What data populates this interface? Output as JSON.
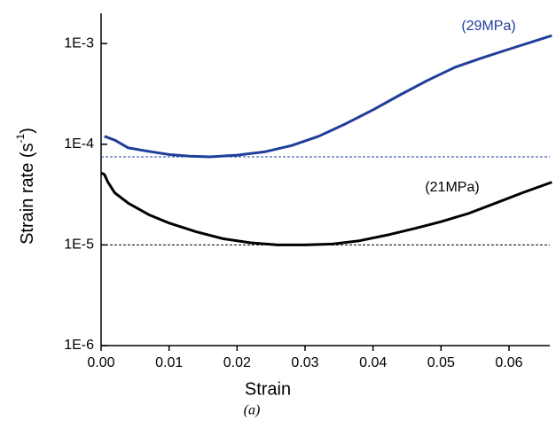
{
  "chart_data": {
    "type": "line",
    "xlabel": "Strain",
    "ylabel": {
      "text": "Strain rate (s",
      "superscript": "-1",
      "close": ")"
    },
    "caption": "(a)",
    "log_y": true,
    "xlim": [
      0,
      0.066
    ],
    "ylim": [
      1e-06,
      0.002
    ],
    "xticks": [
      {
        "value": 0,
        "label": "0.00"
      },
      0.01,
      0.02,
      0.03,
      0.04,
      0.05,
      0.06
    ],
    "yticks": [
      {
        "value": 1e-06,
        "label": "1E-6"
      },
      {
        "value": 1e-05,
        "label": "1E-5"
      },
      {
        "value": 0.0001,
        "label": "1E-4"
      },
      {
        "value": 0.001,
        "label": "1E-3"
      }
    ],
    "series": [
      {
        "name": "(29MPa)",
        "color": "#1f3f9a",
        "x": [
          0.0005,
          0.002,
          0.004,
          0.007,
          0.01,
          0.013,
          0.016,
          0.02,
          0.024,
          0.028,
          0.032,
          0.036,
          0.04,
          0.044,
          0.048,
          0.052,
          0.056,
          0.06,
          0.0663
        ],
        "values": [
          0.00012,
          0.00011,
          9.2e-05,
          8.5e-05,
          7.9e-05,
          7.6e-05,
          7.5e-05,
          7.8e-05,
          8.4e-05,
          9.7e-05,
          0.00012,
          0.00016,
          0.00022,
          0.00031,
          0.00043,
          0.00058,
          0.00072,
          0.00088,
          0.0012
        ]
      },
      {
        "name": "(21MPa)",
        "color": "#000000",
        "x": [
          0,
          0.0005,
          0.001,
          0.002,
          0.004,
          0.007,
          0.01,
          0.014,
          0.018,
          0.022,
          0.026,
          0.03,
          0.034,
          0.038,
          0.042,
          0.046,
          0.05,
          0.054,
          0.058,
          0.062,
          0.0663
        ],
        "values": [
          5.2e-05,
          5e-05,
          4.2e-05,
          3.3e-05,
          2.6e-05,
          2e-05,
          1.65e-05,
          1.35e-05,
          1.15e-05,
          1.05e-05,
          1e-05,
          1e-05,
          1.02e-05,
          1.1e-05,
          1.25e-05,
          1.45e-05,
          1.7e-05,
          2.05e-05,
          2.6e-05,
          3.3e-05,
          4.2e-05
        ]
      }
    ],
    "hlines": [
      {
        "value": 7.5e-05,
        "color": "#1f3f9a"
      },
      {
        "value": 1e-05,
        "color": "#000000"
      }
    ]
  }
}
